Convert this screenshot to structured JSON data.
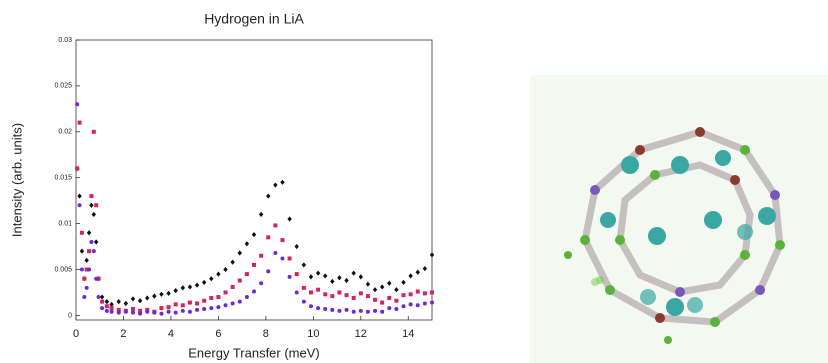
{
  "chart_data": {
    "type": "scatter",
    "title": "Hydrogen in LiA",
    "x_label": "Energy Transfer (meV)",
    "y_label": "Intensity (arb. units)",
    "x": [
      0.05,
      0.15,
      0.25,
      0.35,
      0.45,
      0.55,
      0.65,
      0.75,
      0.85,
      0.95,
      1.1,
      1.3,
      1.5,
      1.8,
      2.1,
      2.4,
      2.7,
      3.0,
      3.3,
      3.6,
      3.9,
      4.2,
      4.5,
      4.8,
      5.1,
      5.4,
      5.7,
      6.0,
      6.3,
      6.6,
      6.9,
      7.2,
      7.5,
      7.8,
      8.1,
      8.4,
      8.7,
      9.0,
      9.3,
      9.6,
      9.9,
      10.2,
      10.5,
      10.8,
      11.1,
      11.4,
      11.7,
      12.0,
      12.3,
      12.6,
      12.9,
      13.2,
      13.5,
      13.8,
      14.1,
      14.4,
      14.7,
      15.0
    ],
    "series": [
      {
        "color": "#111111",
        "marker": "diamond",
        "values": [
          0.016,
          0.013,
          0.007,
          0.004,
          0.006,
          0.009,
          0.012,
          0.011,
          0.008,
          0.004,
          0.002,
          0.0015,
          0.0012,
          0.0015,
          0.0013,
          0.0018,
          0.0016,
          0.0019,
          0.0021,
          0.0023,
          0.0024,
          0.0027,
          0.003,
          0.0031,
          0.0033,
          0.0036,
          0.004,
          0.0045,
          0.005,
          0.0058,
          0.0068,
          0.0078,
          0.0088,
          0.011,
          0.013,
          0.0142,
          0.0145,
          0.0105,
          0.0075,
          0.0055,
          0.0042,
          0.0046,
          0.0043,
          0.0037,
          0.0041,
          0.0038,
          0.0046,
          0.0042,
          0.0034,
          0.0028,
          0.0031,
          0.0035,
          0.0028,
          0.0036,
          0.0043,
          0.0047,
          0.0051,
          0.0066
        ]
      },
      {
        "color": "#d6245a",
        "marker": "square",
        "values": [
          0.016,
          0.021,
          0.009,
          0.004,
          0.005,
          0.007,
          0.013,
          0.02,
          0.012,
          0.004,
          0.0015,
          0.001,
          0.0008,
          0.0006,
          0.0005,
          0.0007,
          0.0005,
          0.0006,
          0.0004,
          0.0008,
          0.0009,
          0.0012,
          0.0011,
          0.0014,
          0.0013,
          0.0016,
          0.0019,
          0.002,
          0.0025,
          0.0031,
          0.0038,
          0.0045,
          0.0055,
          0.0065,
          0.0085,
          0.0098,
          0.0082,
          0.0062,
          0.0045,
          0.003,
          0.0025,
          0.0028,
          0.0023,
          0.0021,
          0.0025,
          0.0022,
          0.0019,
          0.0024,
          0.0021,
          0.0017,
          0.0014,
          0.0019,
          0.0016,
          0.0022,
          0.0023,
          0.0026,
          0.0024,
          0.0025
        ]
      },
      {
        "color": "#6a2bd6",
        "marker": "circle",
        "values": [
          0.023,
          0.012,
          0.005,
          0.002,
          0.003,
          0.005,
          0.008,
          0.007,
          0.004,
          0.002,
          0.0008,
          0.0005,
          0.0004,
          0.0003,
          0.0004,
          0.0003,
          0.0002,
          0.0004,
          0.0003,
          0.0002,
          0.0004,
          0.0003,
          0.0005,
          0.0004,
          0.0006,
          0.0007,
          0.0008,
          0.0009,
          0.0011,
          0.0013,
          0.0015,
          0.002,
          0.0026,
          0.0035,
          0.0048,
          0.0068,
          0.0062,
          0.0042,
          0.0025,
          0.0015,
          0.001,
          0.0008,
          0.0007,
          0.0006,
          0.0005,
          0.0006,
          0.0004,
          0.0005,
          0.0004,
          0.0005,
          0.0004,
          0.0008,
          0.0007,
          0.001,
          0.0012,
          0.0011,
          0.0013,
          0.0014
        ]
      }
    ],
    "xlim": [
      0,
      15
    ],
    "ylim": [
      -0.0005,
      0.03
    ],
    "xticks": [
      0,
      2,
      4,
      6,
      8,
      10,
      12,
      14
    ],
    "yticks": [
      0,
      0.005,
      0.01,
      0.015,
      0.02,
      0.025,
      0.03
    ]
  }
}
